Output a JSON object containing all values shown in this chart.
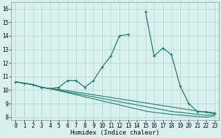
{
  "xlabel": "Humidex (Indice chaleur)",
  "x_values": [
    0,
    1,
    2,
    3,
    4,
    5,
    6,
    7,
    8,
    9,
    10,
    11,
    12,
    13,
    14,
    15,
    16,
    17,
    18,
    19,
    20,
    21,
    22,
    23
  ],
  "line1": [
    10.6,
    10.5,
    10.4,
    10.2,
    10.1,
    10.2,
    10.7,
    10.7,
    10.2,
    10.7,
    11.7,
    12.5,
    14.0,
    14.1,
    null,
    15.8,
    12.5,
    13.1,
    12.6,
    10.3,
    9.0,
    8.4,
    8.4,
    8.3
  ],
  "line2": [
    10.6,
    10.5,
    10.4,
    10.2,
    10.1,
    10.05,
    9.95,
    9.85,
    9.75,
    9.65,
    9.55,
    9.45,
    9.35,
    9.25,
    9.15,
    9.05,
    8.95,
    8.85,
    8.75,
    8.65,
    8.55,
    8.45,
    8.35,
    8.25
  ],
  "line3": [
    10.6,
    10.5,
    10.4,
    10.2,
    10.1,
    9.98,
    9.86,
    9.74,
    9.62,
    9.5,
    9.38,
    9.26,
    9.14,
    9.02,
    8.9,
    8.78,
    8.66,
    8.54,
    8.42,
    8.35,
    8.28,
    8.21,
    8.14,
    8.18
  ],
  "line4": [
    10.6,
    10.5,
    10.4,
    10.2,
    10.1,
    9.95,
    9.8,
    9.65,
    9.5,
    9.35,
    9.2,
    9.05,
    8.9,
    8.75,
    8.6,
    8.45,
    8.35,
    8.28,
    8.2,
    8.15,
    8.1,
    8.05,
    8.0,
    8.1
  ],
  "line_color": "#1a7a6a",
  "bg_color": "#d8f0ee",
  "grid_color": "#aad4cc",
  "ylim": [
    7.8,
    16.5
  ],
  "xlim": [
    -0.5,
    23.5
  ],
  "yticks": [
    8,
    9,
    10,
    11,
    12,
    13,
    14,
    15,
    16
  ],
  "xticks": [
    0,
    1,
    2,
    3,
    4,
    5,
    6,
    7,
    8,
    9,
    10,
    11,
    12,
    13,
    14,
    15,
    16,
    17,
    18,
    19,
    20,
    21,
    22,
    23
  ],
  "tick_fontsize": 5.5,
  "xlabel_fontsize": 6.5
}
